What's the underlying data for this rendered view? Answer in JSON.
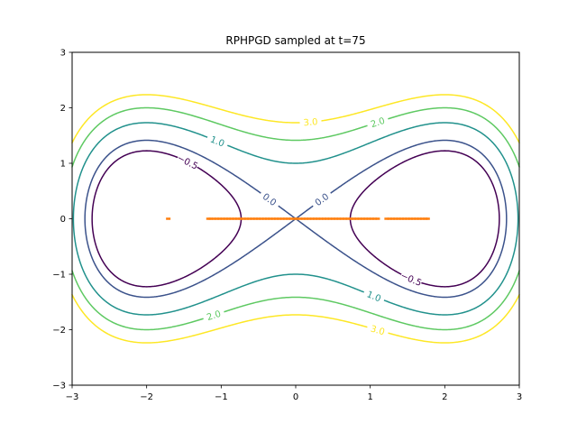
{
  "chart_data": {
    "type": "contour",
    "title": "RPHPGD sampled at t=75",
    "xlabel": "",
    "ylabel": "",
    "xlim": [
      -3,
      3
    ],
    "ylim": [
      -3,
      3
    ],
    "x_ticks": [
      -3,
      -2,
      -1,
      0,
      1,
      2,
      3
    ],
    "y_ticks": [
      -3,
      -2,
      -1,
      0,
      1,
      2,
      3
    ],
    "grid": false,
    "levels": [
      {
        "value": -0.5,
        "label": "−0.5",
        "color": "#440154"
      },
      {
        "value": 0.0,
        "label": "0.0",
        "color": "#3b528b"
      },
      {
        "value": 1.0,
        "label": "1.0",
        "color": "#21918c"
      },
      {
        "value": 2.0,
        "label": "2.0",
        "color": "#5ec962"
      },
      {
        "value": 3.0,
        "label": "3.0",
        "color": "#fde725"
      }
    ],
    "samples": {
      "color": "#ff7f0e",
      "y": 0,
      "x": [
        -1.71,
        -1.17,
        -1.14,
        -1.1,
        -1.06,
        -1.02,
        -0.98,
        -0.94,
        -0.9,
        -0.86,
        -0.82,
        -0.78,
        -0.74,
        -0.7,
        -0.66,
        -0.62,
        -0.58,
        -0.54,
        -0.5,
        -0.46,
        -0.42,
        -0.38,
        -0.34,
        -0.3,
        -0.26,
        -0.22,
        -0.18,
        -0.14,
        -0.1,
        -0.06,
        -0.02,
        0.02,
        0.06,
        0.1,
        0.14,
        0.18,
        0.22,
        0.26,
        0.3,
        0.34,
        0.38,
        0.42,
        0.46,
        0.5,
        0.54,
        0.58,
        0.62,
        0.66,
        0.7,
        0.74,
        0.78,
        0.82,
        0.86,
        0.9,
        0.94,
        0.98,
        1.02,
        1.06,
        1.1,
        1.22,
        1.26,
        1.3,
        1.34,
        1.38,
        1.42,
        1.46,
        1.5,
        1.54,
        1.58,
        1.62,
        1.66,
        1.7,
        1.74,
        1.77
      ]
    }
  }
}
